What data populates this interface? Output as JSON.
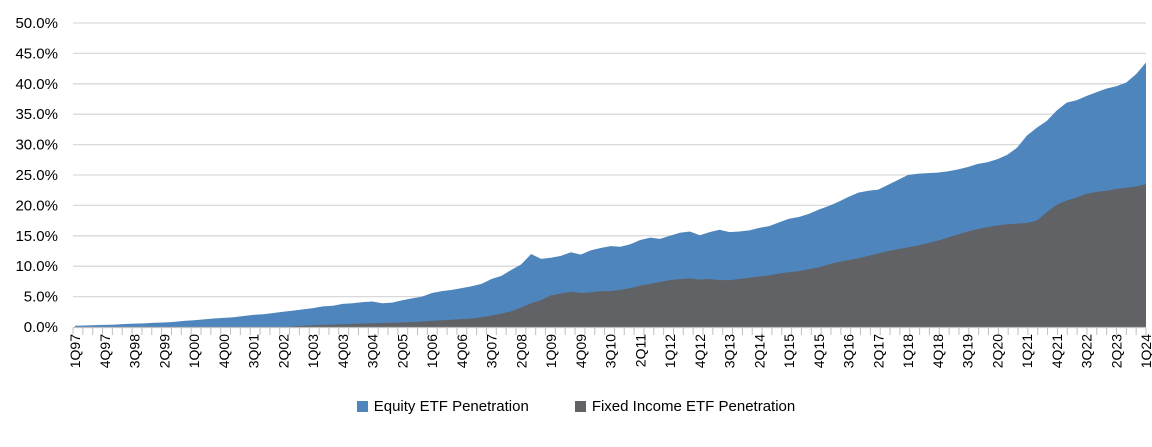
{
  "chart_data": {
    "type": "area",
    "title": "",
    "overlap_mode": "overlaid",
    "grid": true,
    "legend_position": "bottom",
    "x_axis": {
      "n_points": 109,
      "label_every_n_points": 3,
      "tick_labels": [
        "1Q97",
        "4Q97",
        "3Q98",
        "2Q99",
        "1Q00",
        "4Q00",
        "3Q01",
        "2Q02",
        "1Q03",
        "4Q03",
        "3Q04",
        "2Q05",
        "1Q06",
        "4Q06",
        "3Q07",
        "2Q08",
        "1Q09",
        "4Q09",
        "3Q10",
        "2Q11",
        "1Q12",
        "4Q12",
        "3Q13",
        "2Q14",
        "1Q15",
        "4Q15",
        "3Q16",
        "2Q17",
        "1Q18",
        "4Q18",
        "3Q19",
        "2Q20",
        "1Q21",
        "4Q21",
        "3Q22",
        "2Q23",
        "1Q24"
      ]
    },
    "y_axis": {
      "min": 0,
      "max": 50,
      "step": 5,
      "tick_labels": [
        "0.0%",
        "5.0%",
        "10.0%",
        "15.0%",
        "20.0%",
        "25.0%",
        "30.0%",
        "35.0%",
        "40.0%",
        "45.0%",
        "50.0%"
      ]
    },
    "series": [
      {
        "name": "Equity ETF Penetration",
        "color": "#4E85BD",
        "values": [
          0.2,
          0.25,
          0.3,
          0.35,
          0.4,
          0.5,
          0.55,
          0.6,
          0.7,
          0.75,
          0.85,
          1.0,
          1.1,
          1.25,
          1.4,
          1.5,
          1.6,
          1.8,
          2.0,
          2.1,
          2.3,
          2.5,
          2.7,
          2.9,
          3.1,
          3.4,
          3.5,
          3.8,
          3.9,
          4.1,
          4.2,
          3.9,
          4.0,
          4.4,
          4.7,
          5.0,
          5.6,
          5.9,
          6.1,
          6.4,
          6.7,
          7.1,
          7.9,
          8.4,
          9.4,
          10.3,
          12.0,
          11.2,
          11.4,
          11.7,
          12.3,
          11.9,
          12.6,
          13.0,
          13.3,
          13.2,
          13.6,
          14.3,
          14.7,
          14.5,
          15.0,
          15.5,
          15.7,
          15.1,
          15.6,
          16.0,
          15.6,
          15.7,
          15.9,
          16.3,
          16.6,
          17.2,
          17.8,
          18.1,
          18.6,
          19.3,
          19.9,
          20.6,
          21.4,
          22.1,
          22.4,
          22.6,
          23.4,
          24.2,
          25.0,
          25.2,
          25.3,
          25.4,
          25.6,
          25.9,
          26.3,
          26.8,
          27.1,
          27.6,
          28.3,
          29.5,
          31.5,
          32.8,
          33.9,
          35.6,
          36.9,
          37.3,
          38.0,
          38.6,
          39.2,
          39.6,
          40.2,
          41.6,
          43.5
        ]
      },
      {
        "name": "Fixed Income ETF Penetration",
        "color": "#606266",
        "values": [
          0,
          0,
          0,
          0,
          0,
          0,
          0,
          0,
          0,
          0,
          0,
          0,
          0,
          0,
          0,
          0,
          0,
          0,
          0,
          0,
          0,
          0,
          0.1,
          0.2,
          0.3,
          0.35,
          0.4,
          0.45,
          0.5,
          0.55,
          0.6,
          0.65,
          0.7,
          0.75,
          0.8,
          0.9,
          1.0,
          1.1,
          1.2,
          1.3,
          1.4,
          1.6,
          1.9,
          2.2,
          2.6,
          3.2,
          3.9,
          4.4,
          5.2,
          5.5,
          5.8,
          5.6,
          5.7,
          5.9,
          5.9,
          6.1,
          6.4,
          6.8,
          7.1,
          7.4,
          7.7,
          7.9,
          8.0,
          7.8,
          7.9,
          7.7,
          7.7,
          7.9,
          8.1,
          8.3,
          8.5,
          8.8,
          9.0,
          9.2,
          9.5,
          9.8,
          10.3,
          10.7,
          11.0,
          11.3,
          11.7,
          12.1,
          12.5,
          12.8,
          13.1,
          13.4,
          13.8,
          14.2,
          14.7,
          15.2,
          15.7,
          16.1,
          16.4,
          16.7,
          16.9,
          17.0,
          17.1,
          17.5,
          18.9,
          20.1,
          20.8,
          21.3,
          21.9,
          22.2,
          22.4,
          22.7,
          22.9,
          23.1,
          23.5
        ]
      }
    ],
    "colors": {
      "gridline": "#D9D9D9",
      "axis": "#BFBFBF",
      "tick": "#BFBFBF",
      "text": "#000000"
    }
  }
}
